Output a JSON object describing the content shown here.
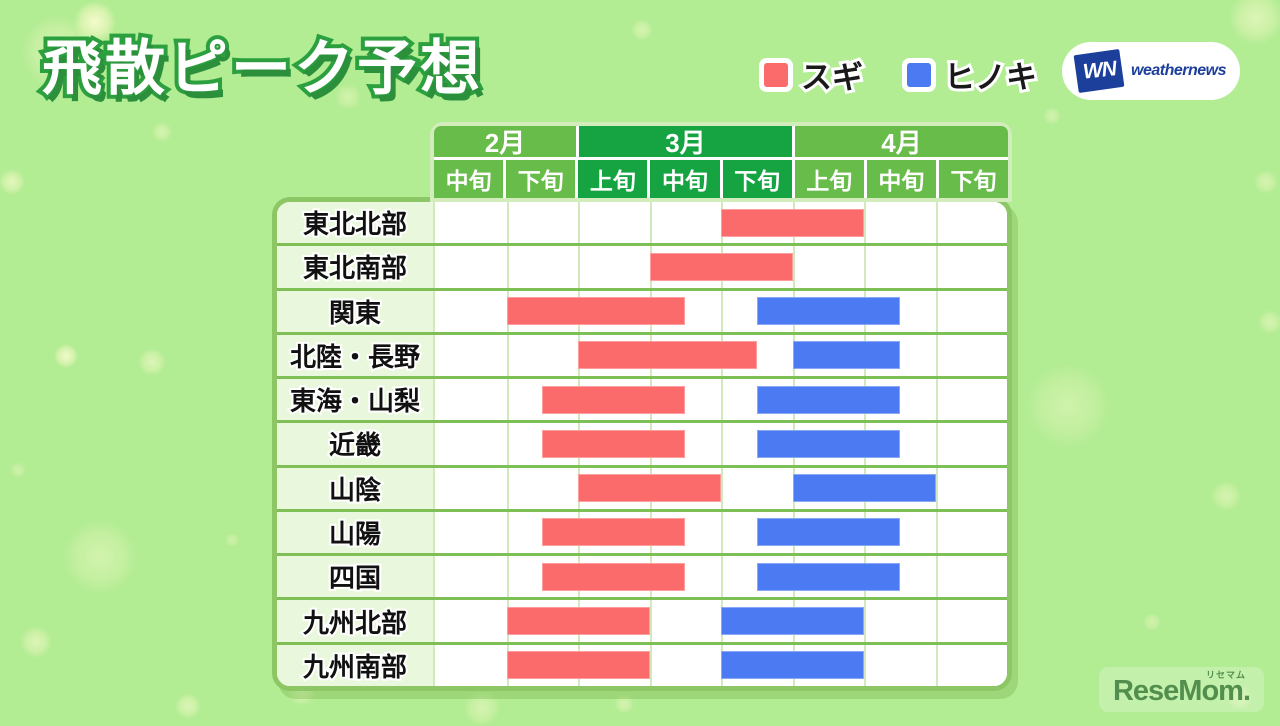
{
  "title": "飛散ピーク予想",
  "legend": [
    {
      "label": "スギ",
      "color": "#fb6b6b"
    },
    {
      "label": "ヒノキ",
      "color": "#4b7af2"
    }
  ],
  "logo": {
    "mark": "WN",
    "text": "weathernews"
  },
  "watermark": {
    "text": "ReseMom.",
    "ruby": "リセマム"
  },
  "colors": {
    "sugi": "#fb6b6b",
    "hinoki": "#4b7af2",
    "month_light": "#68bc4a",
    "month_dark": "#15a441",
    "label_bg": "#e9f8dc",
    "background": "#b2ec93"
  },
  "table": {
    "months": [
      {
        "label": "2月",
        "span": 2,
        "tone": "light"
      },
      {
        "label": "3月",
        "span": 3,
        "tone": "dark"
      },
      {
        "label": "4月",
        "span": 3,
        "tone": "light"
      }
    ],
    "periods": [
      "中旬",
      "下旬",
      "上旬",
      "中旬",
      "下旬",
      "上旬",
      "中旬",
      "下旬"
    ]
  },
  "chart_data": {
    "type": "bar",
    "subtype": "gantt-range",
    "title": "飛散ピーク予想",
    "legend_entries": [
      "スギ",
      "ヒノキ"
    ],
    "x_axis": {
      "months": [
        "2月",
        "3月",
        "4月"
      ],
      "columns": [
        "2月中旬",
        "2月下旬",
        "3月上旬",
        "3月中旬",
        "3月下旬",
        "4月上旬",
        "4月中旬",
        "4月下旬"
      ],
      "unit_note": "ranges given in column units; 0 = start of 2月中旬, 8 = end of 4月下旬"
    },
    "rows": [
      {
        "region": "東北北部",
        "sugi": [
          4,
          6
        ],
        "hinoki": null
      },
      {
        "region": "東北南部",
        "sugi": [
          3,
          5
        ],
        "hinoki": null
      },
      {
        "region": "関東",
        "sugi": [
          1,
          3.5
        ],
        "hinoki": [
          4.5,
          6.5
        ]
      },
      {
        "region": "北陸・長野",
        "sugi": [
          2,
          4.5
        ],
        "hinoki": [
          5,
          6.5
        ]
      },
      {
        "region": "東海・山梨",
        "sugi": [
          1.5,
          3.5
        ],
        "hinoki": [
          4.5,
          6.5
        ]
      },
      {
        "region": "近畿",
        "sugi": [
          1.5,
          3.5
        ],
        "hinoki": [
          4.5,
          6.5
        ]
      },
      {
        "region": "山陰",
        "sugi": [
          2,
          4
        ],
        "hinoki": [
          5,
          7
        ]
      },
      {
        "region": "山陽",
        "sugi": [
          1.5,
          3.5
        ],
        "hinoki": [
          4.5,
          6.5
        ]
      },
      {
        "region": "四国",
        "sugi": [
          1.5,
          3.5
        ],
        "hinoki": [
          4.5,
          6.5
        ]
      },
      {
        "region": "九州北部",
        "sugi": [
          1,
          3
        ],
        "hinoki": [
          4,
          6
        ]
      },
      {
        "region": "九州南部",
        "sugi": [
          1,
          3
        ],
        "hinoki": [
          4,
          6
        ]
      }
    ]
  }
}
